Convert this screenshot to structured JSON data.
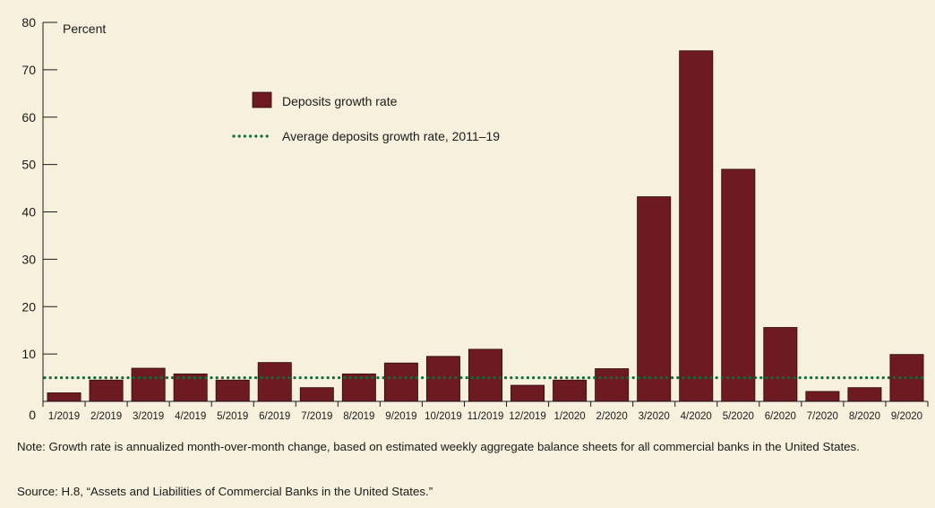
{
  "chart_data": {
    "type": "bar",
    "y_unit_label": "Percent",
    "ylim": [
      0,
      80
    ],
    "yticks": [
      0,
      10,
      20,
      30,
      40,
      50,
      60,
      70,
      80
    ],
    "ytick_labels": [
      "0",
      "10",
      "20",
      "30",
      "40",
      "50",
      "60",
      "70",
      "80"
    ],
    "categories": [
      "1/2019",
      "2/2019",
      "3/2019",
      "4/2019",
      "5/2019",
      "6/2019",
      "7/2019",
      "8/2019",
      "9/2019",
      "10/2019",
      "11/2019",
      "12/2019",
      "1/2020",
      "2/2020",
      "3/2020",
      "4/2020",
      "5/2020",
      "6/2020",
      "7/2020",
      "8/2020",
      "9/2020"
    ],
    "series": [
      {
        "name": "Deposits growth rate",
        "values": [
          1.8,
          4.5,
          7.0,
          5.8,
          4.5,
          8.2,
          2.9,
          5.8,
          8.1,
          9.5,
          11.0,
          3.4,
          4.5,
          6.9,
          43.2,
          74.0,
          49.0,
          15.6,
          2.1,
          2.9,
          9.9
        ]
      }
    ],
    "reference_line": {
      "name": "Average deposits growth rate, 2011–19",
      "value": 5.0,
      "style": "dotted"
    },
    "legend_position": "upper-left",
    "grid": false,
    "colors": {
      "bar": "#6e1a22",
      "bar_edge": "#2a0808",
      "reference_line": "#0e6b3c",
      "background": "#f7f0dc",
      "axis": "#1a1a1a"
    }
  },
  "notes": {
    "note": "Note: Growth rate is annualized month-over-month change, based on estimated weekly aggregate balance sheets for all commercial banks in the United States.",
    "source": "Source: H.8, “Assets and Liabilities of Commercial Banks in the United States.”"
  }
}
